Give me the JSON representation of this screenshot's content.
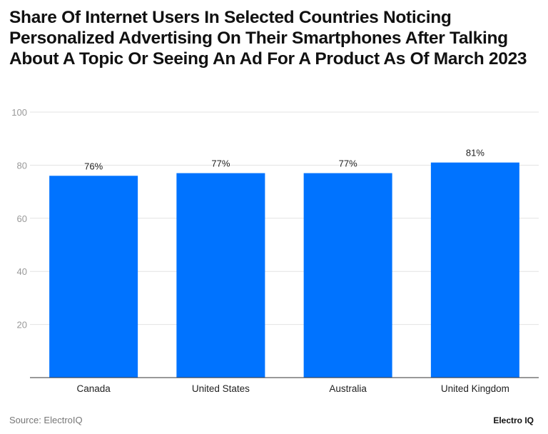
{
  "chart_data": {
    "type": "bar",
    "title": "Share Of Internet Users In Selected Countries Noticing Personalized Advertising On Their Smartphones After Talking About A Topic Or Seeing An Ad For A Product As Of March 2023",
    "categories": [
      "Canada",
      "United States",
      "Australia",
      "United Kingdom"
    ],
    "values": [
      76,
      77,
      77,
      81
    ],
    "data_labels": [
      "76%",
      "77%",
      "77%",
      "81%"
    ],
    "xlabel": "",
    "ylabel": "",
    "ylim": [
      0,
      100
    ],
    "yticks": [
      20,
      40,
      60,
      80,
      100
    ],
    "grid": true,
    "bar_color": "#0073ff"
  },
  "footer": {
    "source": "Source: ElectroIQ",
    "brand": "Electro IQ"
  }
}
